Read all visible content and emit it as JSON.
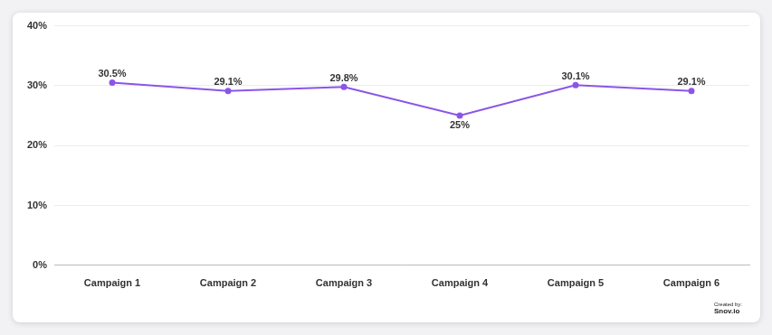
{
  "chart_data": {
    "type": "line",
    "categories": [
      "Campaign 1",
      "Campaign 2",
      "Campaign 3",
      "Campaign 4",
      "Campaign 5",
      "Campaign 6"
    ],
    "values": [
      30.5,
      29.1,
      29.8,
      25,
      30.1,
      29.1
    ],
    "value_labels": [
      "30.5%",
      "29.1%",
      "29.8%",
      "25%",
      "30.1%",
      "29.1%"
    ],
    "color": "#8b55e8",
    "marker": "circle",
    "ylim": [
      0,
      40
    ],
    "yticks": [
      {
        "value": 0,
        "label": "0%"
      },
      {
        "value": 10,
        "label": "10%"
      },
      {
        "value": 20,
        "label": "20%"
      },
      {
        "value": 30,
        "label": "30%"
      },
      {
        "value": 40,
        "label": "40%"
      }
    ],
    "grid": true,
    "data_labels": true,
    "annotations": [
      "Created by:",
      "Snov.io"
    ]
  }
}
